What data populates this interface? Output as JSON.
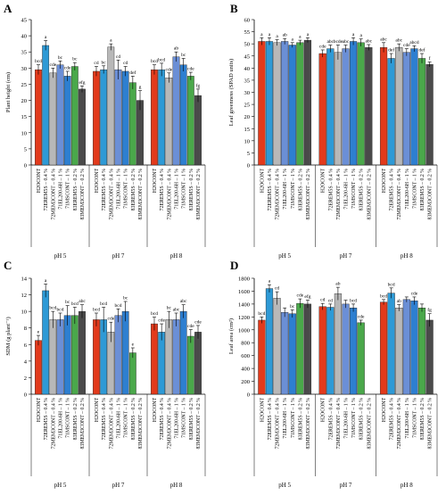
{
  "colors": {
    "series": [
      "#e23a1c",
      "#2e9ad6",
      "#b8b8b8",
      "#6b8fd6",
      "#2e7fd0",
      "#4aa84a",
      "#4a4a4a"
    ],
    "axis": "#000000",
    "error": "#000000"
  },
  "chart_data": [
    {
      "panel": "A",
      "type": "bar",
      "ylabel": "Plant height (cm)",
      "ylim": [
        0,
        45
      ],
      "yticks": [
        0,
        5,
        10,
        15,
        20,
        25,
        30,
        35,
        40,
        45
      ],
      "categories": [
        "H2OCONT",
        "72EREM5S – 0.4 %",
        "72MEM3CONT – 0.4 %",
        "71EL200-6H – 1 %",
        "71MSCONT – 1 %",
        "83EREM5S – 0.2 %",
        "83MEM3CONT – 0.2 %"
      ],
      "groups": [
        "pH 5",
        "pH 7",
        "pH 8"
      ],
      "series": [
        {
          "group": "pH 5",
          "values": [
            29.5,
            37,
            28.5,
            31,
            27.5,
            30.5,
            23.5
          ],
          "errors": [
            1.5,
            1.5,
            1.5,
            1.2,
            1.5,
            1.2,
            1.0
          ],
          "letters": [
            "bcd",
            "a",
            "cde",
            "bc",
            "cde",
            "bc",
            "efg"
          ]
        },
        {
          "group": "pH 7",
          "values": [
            29,
            29.5,
            36.5,
            29.5,
            29,
            25.5,
            20
          ],
          "errors": [
            1.5,
            1.2,
            1.0,
            3.0,
            1.5,
            2.0,
            3.0
          ],
          "letters": [
            "cd",
            "bc",
            "a",
            "cd",
            "cd",
            "def",
            "g"
          ]
        },
        {
          "group": "pH 8",
          "values": [
            29.5,
            29.5,
            27,
            33.5,
            31,
            27.5,
            21.5
          ],
          "errors": [
            1.5,
            2.0,
            1.5,
            1.5,
            2.0,
            1.2,
            2.0
          ],
          "letters": [
            "bcd",
            "bcd",
            "cde",
            "ab",
            "bc",
            "cde",
            "fg"
          ]
        }
      ]
    },
    {
      "panel": "B",
      "type": "bar",
      "ylabel": "Leaf greenness (SPAD units)",
      "ylim": [
        0,
        60
      ],
      "yticks": [
        0,
        5,
        10,
        15,
        20,
        25,
        30,
        35,
        40,
        45,
        50,
        55,
        60
      ],
      "categories": [
        "H2OCONT",
        "72EREM5S – 0.4 %",
        "72MEM3CONT – 0.4 %",
        "71EL200-6H – 1 %",
        "71MSCONT – 1 %",
        "83EREM5S – 0.2 %",
        "83MEM3CONT – 0.2 %"
      ],
      "groups": [
        "pH 5",
        "pH 7",
        "pH 8"
      ],
      "series": [
        {
          "group": "pH 5",
          "values": [
            51,
            51,
            50.5,
            51,
            49.5,
            50.5,
            51.5
          ],
          "errors": [
            1.5,
            1.5,
            1.2,
            1.2,
            1.0,
            1.0,
            1.0
          ],
          "letters": [
            "a",
            "a",
            "a",
            "ab",
            "a",
            "a",
            "a"
          ]
        },
        {
          "group": "pH 7",
          "values": [
            46,
            48,
            46.5,
            48,
            51,
            50.5,
            48.5
          ],
          "errors": [
            1.5,
            1.5,
            3.0,
            1.5,
            1.5,
            1.5,
            1.2
          ],
          "letters": [
            "cde",
            "abc",
            "bcde",
            "abc",
            "a",
            "a",
            "abc"
          ]
        },
        {
          "group": "pH 8",
          "values": [
            48.5,
            44,
            48.5,
            46.5,
            48,
            44,
            41.5
          ],
          "errors": [
            2.0,
            2.0,
            1.5,
            1.5,
            1.2,
            2.0,
            1.0
          ],
          "letters": [
            "abc",
            "def",
            "abc",
            "cde",
            "abcd",
            "def",
            "f"
          ]
        }
      ]
    },
    {
      "panel": "C",
      "type": "bar",
      "ylabel": "SDM (g plant⁻¹)",
      "ylim": [
        0,
        14
      ],
      "yticks": [
        0,
        2,
        4,
        6,
        8,
        10,
        12,
        14
      ],
      "categories": [
        "H2OCONT",
        "72EREM5S – 0.4 %",
        "72MEM3CONT – 0.4 %",
        "71EL200-6H – 1 %",
        "71MSCONT – 1 %",
        "83EREM5S – 0.2 %",
        "83MEM3CONT – 0.2 %"
      ],
      "groups": [
        "pH 5",
        "pH 7",
        "pH 8"
      ],
      "series": [
        {
          "group": "pH 5",
          "values": [
            6.5,
            12.5,
            9,
            9,
            9.5,
            9.5,
            10
          ],
          "errors": [
            0.6,
            0.8,
            1.0,
            0.8,
            1.2,
            1.0,
            0.8
          ],
          "letters": [
            "e",
            "a",
            "bcd",
            "bcd",
            "bc",
            "bcd",
            "abc"
          ]
        },
        {
          "group": "pH 7",
          "values": [
            9,
            9,
            7.5,
            9.5,
            10,
            5,
            0
          ],
          "errors": [
            0.8,
            1.5,
            1.2,
            0.8,
            1.2,
            0.6,
            0
          ],
          "letters": [
            "bcd",
            "bcd",
            "cde",
            "bcd",
            "bc",
            "e",
            ""
          ]
        },
        {
          "group": "pH 8",
          "values": [
            8.5,
            7.5,
            9,
            9,
            10,
            7,
            7.5
          ],
          "errors": [
            0.8,
            1.0,
            1.0,
            0.8,
            0.8,
            0.8,
            0.8
          ],
          "letters": [
            "bcd",
            "cde",
            "bc",
            "abc",
            "abc",
            "cde",
            "cde"
          ]
        }
      ]
    },
    {
      "panel": "D",
      "type": "bar",
      "ylabel": "Leaf area (cm²)",
      "ylim": [
        0,
        1800
      ],
      "yticks": [
        0,
        200,
        400,
        600,
        800,
        1000,
        1200,
        1400,
        1600,
        1800
      ],
      "categories": [
        "H2OCONT",
        "72EREM5S – 0.4 %",
        "72MEM3CONT – 0.4 %",
        "71EL200-6H – 1 %",
        "71MSCONT – 1 %",
        "83EREM5S – 0.2 %",
        "83MEM3CONT – 0.2 %"
      ],
      "groups": [
        "pH 5",
        "pH 7",
        "pH 8"
      ],
      "series": [
        {
          "group": "pH 5",
          "values": [
            1150,
            1640,
            1490,
            1270,
            1250,
            1410,
            1400
          ],
          "errors": [
            50,
            60,
            100,
            70,
            60,
            70,
            60
          ],
          "letters": [
            "bcd",
            "a",
            "cd",
            "",
            "bc",
            "cde",
            "efg"
          ]
        },
        {
          "group": "pH 7",
          "values": [
            1360,
            1350,
            1560,
            1400,
            1340,
            1110,
            0
          ],
          "errors": [
            50,
            50,
            100,
            60,
            60,
            40,
            0
          ],
          "letters": [
            "cd",
            "cd",
            "ab",
            "",
            "bcd",
            "cde",
            "g"
          ]
        },
        {
          "group": "pH 8",
          "values": [
            1430,
            1570,
            1340,
            1470,
            1450,
            1340,
            1150
          ],
          "errors": [
            40,
            80,
            50,
            40,
            60,
            60,
            100
          ],
          "letters": [
            "bcd",
            "bcd",
            "ab",
            "",
            "cde",
            "",
            "fg"
          ]
        }
      ]
    }
  ]
}
